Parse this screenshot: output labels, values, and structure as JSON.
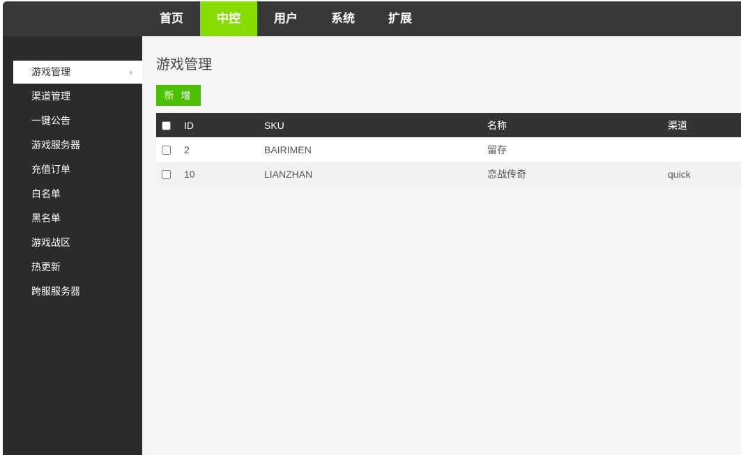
{
  "nav": {
    "items": [
      {
        "label": "首页"
      },
      {
        "label": "中控",
        "active": true
      },
      {
        "label": "用户"
      },
      {
        "label": "系统"
      },
      {
        "label": "扩展"
      }
    ],
    "accent": "#88dd00"
  },
  "sidebar": {
    "items": [
      {
        "label": "游戏管理",
        "active": true
      },
      {
        "label": "渠道管理"
      },
      {
        "label": "一键公告"
      },
      {
        "label": "游戏服务器"
      },
      {
        "label": "充值订单"
      },
      {
        "label": "白名单"
      },
      {
        "label": "黑名单"
      },
      {
        "label": "游戏战区"
      },
      {
        "label": "热更新"
      },
      {
        "label": "跨服服务器"
      }
    ],
    "chevron": "chevron-right-icon"
  },
  "main": {
    "title": "游戏管理",
    "add_label": "新 增",
    "button_color": "#4cbf00",
    "table": {
      "headers": [
        "ID",
        "SKU",
        "名称",
        "渠道"
      ],
      "rows": [
        [
          "2",
          "BAIRIMEN",
          "留存",
          ""
        ],
        [
          "10",
          "LIANZHAN",
          "恋战传奇",
          "quick"
        ]
      ]
    }
  }
}
